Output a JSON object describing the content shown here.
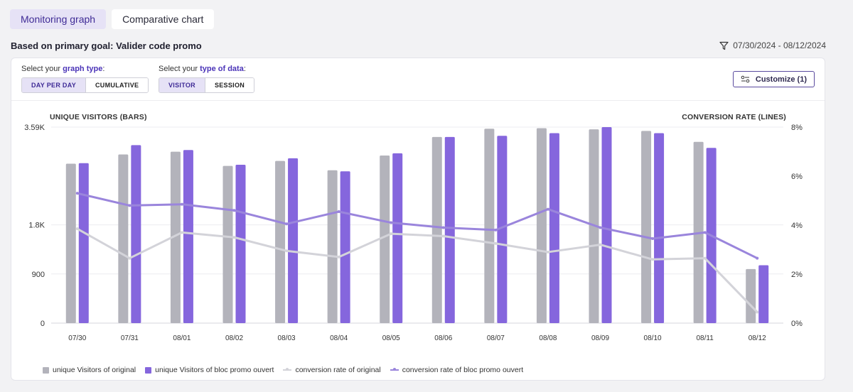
{
  "tabs": [
    {
      "label": "Monitoring graph",
      "active": true
    },
    {
      "label": "Comparative chart",
      "active": false
    }
  ],
  "goal_text": "Based on primary goal: Valider code promo",
  "date_range": "07/30/2024 - 08/12/2024",
  "graph_type": {
    "prefix": "Select your ",
    "highlight": "graph type",
    "suffix": ":",
    "options": [
      "DAY PER DAY",
      "CUMULATIVE"
    ],
    "selected": "DAY PER DAY"
  },
  "data_type": {
    "prefix": "Select your ",
    "highlight": "type of data",
    "suffix": ":",
    "options": [
      "VISITOR",
      "SESSION"
    ],
    "selected": "VISITOR"
  },
  "customize_label": "Customize (1)",
  "chart_data": {
    "type": "bar",
    "categories": [
      "07/30",
      "07/31",
      "08/01",
      "08/02",
      "08/03",
      "08/04",
      "08/05",
      "08/06",
      "08/07",
      "08/08",
      "08/09",
      "08/10",
      "08/11",
      "08/12"
    ],
    "ylabel_left": "UNIQUE VISITORS (BARS)",
    "ylabel_right": "CONVERSION RATE (LINES)",
    "left_ticks": [
      "0",
      "900",
      "1.8K",
      "3.59K"
    ],
    "left_tick_values": [
      0,
      900,
      1800,
      3590
    ],
    "ylim_left": [
      0,
      3590
    ],
    "right_ticks": [
      "0%",
      "2%",
      "4%",
      "6%",
      "8%"
    ],
    "right_tick_values": [
      0,
      2,
      4,
      6,
      8
    ],
    "ylim_right": [
      0,
      8
    ],
    "grid": true,
    "legend_position": "bottom-left",
    "series": [
      {
        "name": "unique Visitors of original",
        "kind": "bar",
        "axis": "left",
        "color": "#b3b3bb",
        "values": [
          2920,
          3090,
          3140,
          2880,
          2970,
          2800,
          3070,
          3410,
          3560,
          3570,
          3550,
          3520,
          3320,
          990
        ]
      },
      {
        "name": "unique Visitors of bloc promo ouvert",
        "kind": "bar",
        "axis": "left",
        "color": "#8566dd",
        "values": [
          2930,
          3260,
          3170,
          2900,
          3020,
          2780,
          3110,
          3410,
          3430,
          3480,
          3590,
          3480,
          3210,
          1060
        ]
      },
      {
        "name": "conversion rate of original",
        "kind": "line",
        "axis": "right",
        "color": "#d3d3d9",
        "values": [
          3.85,
          2.65,
          3.7,
          3.5,
          2.95,
          2.7,
          3.65,
          3.55,
          3.25,
          2.9,
          3.2,
          2.6,
          2.65,
          0.45
        ]
      },
      {
        "name": "conversion rate of bloc promo ouvert",
        "kind": "line",
        "axis": "right",
        "color": "#9a85dc",
        "values": [
          5.3,
          4.8,
          4.85,
          4.6,
          4.05,
          4.55,
          4.1,
          3.9,
          3.8,
          4.65,
          3.9,
          3.45,
          3.7,
          2.65
        ]
      }
    ]
  }
}
